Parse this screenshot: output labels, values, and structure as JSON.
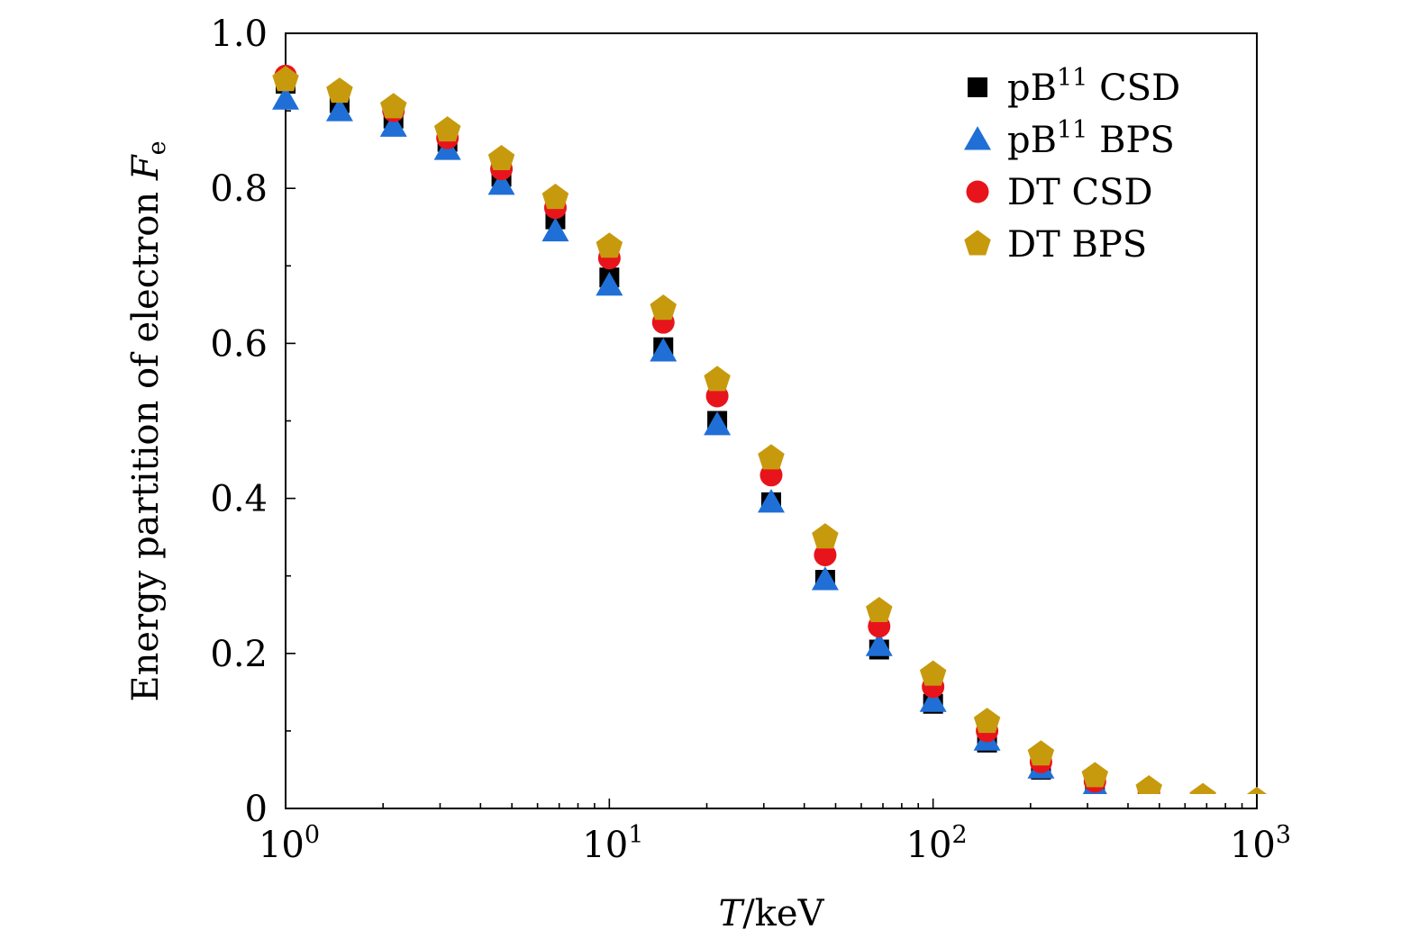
{
  "chart_data": {
    "type": "scatter",
    "xscale": "log",
    "xlim": [
      1,
      1000
    ],
    "ylim": [
      0,
      1.0
    ],
    "xlabel": {
      "italic": "T",
      "rest": "/keV"
    },
    "ylabel": {
      "text": "Energy partition of electron ",
      "symbol": "F",
      "subscript": "e"
    },
    "x_ticks": [
      {
        "base": "10",
        "exp": "0",
        "value": 1
      },
      {
        "base": "10",
        "exp": "1",
        "value": 10
      },
      {
        "base": "10",
        "exp": "2",
        "value": 100
      },
      {
        "base": "10",
        "exp": "3",
        "value": 1000
      }
    ],
    "y_ticks": [
      {
        "label": "0",
        "value": 0
      },
      {
        "label": "0.2",
        "value": 0.2
      },
      {
        "label": "0.4",
        "value": 0.4
      },
      {
        "label": "0.6",
        "value": 0.6
      },
      {
        "label": "0.8",
        "value": 0.8
      },
      {
        "label": "1.0",
        "value": 1.0
      }
    ],
    "legend_position": "top-right",
    "x": [
      1,
      1.468,
      2.154,
      3.162,
      4.642,
      6.813,
      10,
      14.68,
      21.54,
      31.62,
      46.42,
      68.13,
      100,
      146.8,
      215.4,
      316.2,
      464.2,
      681.3,
      1000
    ],
    "series": [
      {
        "name": {
          "pre": "pB",
          "sup": "11",
          "post": " CSD"
        },
        "marker": "square",
        "color": "#000000",
        "values": [
          0.935,
          0.91,
          0.89,
          0.86,
          0.815,
          0.76,
          0.685,
          0.595,
          0.5,
          0.395,
          0.295,
          0.205,
          0.135,
          0.085,
          0.05,
          0.028,
          0.015,
          0.007,
          0.003
        ]
      },
      {
        "name": {
          "pre": "pB",
          "sup": "11",
          "post": " BPS"
        },
        "marker": "triangle",
        "color": "#1f6fd6",
        "values": [
          0.915,
          0.9,
          0.88,
          0.85,
          0.805,
          0.745,
          0.675,
          0.59,
          0.495,
          0.395,
          0.295,
          0.21,
          0.138,
          0.088,
          0.052,
          0.029,
          0.016,
          0.007,
          0.003
        ]
      },
      {
        "name": {
          "pre": "DT CSD",
          "sup": "",
          "post": ""
        },
        "marker": "circle",
        "color": "#e8141b",
        "values": [
          0.945,
          0.925,
          0.9,
          0.865,
          0.825,
          0.775,
          0.71,
          0.627,
          0.532,
          0.43,
          0.327,
          0.235,
          0.157,
          0.1,
          0.06,
          0.035,
          0.02,
          0.011,
          0.006
        ]
      },
      {
        "name": {
          "pre": "DT BPS",
          "sup": "",
          "post": ""
        },
        "marker": "pentagon",
        "color": "#c79a0e",
        "values": [
          0.94,
          0.925,
          0.905,
          0.875,
          0.838,
          0.788,
          0.725,
          0.645,
          0.553,
          0.452,
          0.35,
          0.255,
          0.173,
          0.112,
          0.07,
          0.042,
          0.025,
          0.015,
          0.01
        ]
      }
    ]
  }
}
